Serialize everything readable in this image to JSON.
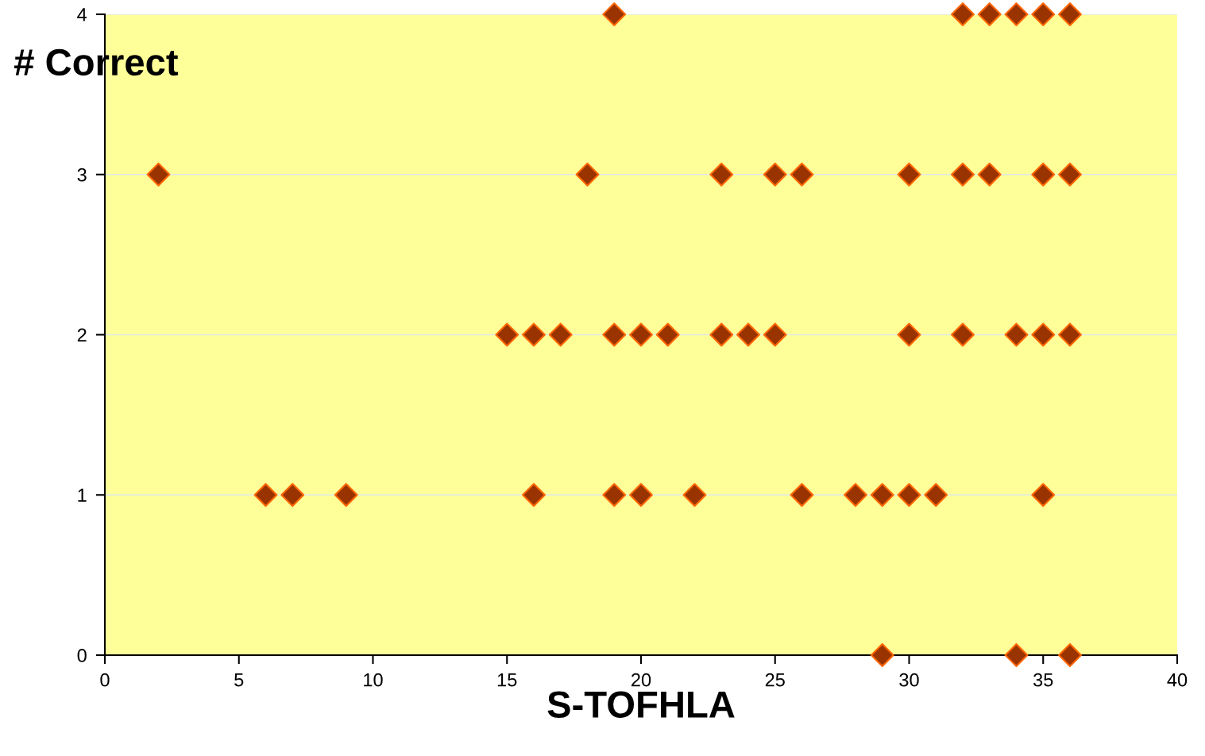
{
  "chart_data": {
    "type": "scatter",
    "xlabel": "S-TOFHLA",
    "ylabel": "# Correct",
    "x": [
      19,
      32,
      33,
      34,
      35,
      36,
      2,
      18,
      23,
      25,
      26,
      30,
      32,
      33,
      35,
      36,
      15,
      16,
      17,
      19,
      20,
      21,
      23,
      24,
      25,
      30,
      32,
      34,
      35,
      36,
      6,
      7,
      9,
      16,
      19,
      20,
      22,
      26,
      28,
      29,
      30,
      31,
      35,
      29,
      34,
      36
    ],
    "series": [
      {
        "color": "#993300",
        "values": [
          4,
          4,
          4,
          4,
          4,
          4,
          3,
          3,
          3,
          3,
          3,
          3,
          3,
          3,
          3,
          3,
          2,
          2,
          2,
          2,
          2,
          2,
          2,
          2,
          2,
          2,
          2,
          2,
          2,
          2,
          1,
          1,
          1,
          1,
          1,
          1,
          1,
          1,
          1,
          1,
          1,
          1,
          1,
          0,
          0,
          0
        ]
      }
    ],
    "marker": "diamond",
    "xlim": [
      0,
      40
    ],
    "xticks": [
      0,
      5,
      10,
      15,
      20,
      25,
      30,
      35,
      40
    ],
    "ylim": [
      0,
      4
    ],
    "yticks": [
      0,
      1,
      2,
      3,
      4
    ],
    "grid": "y",
    "legend": false
  }
}
